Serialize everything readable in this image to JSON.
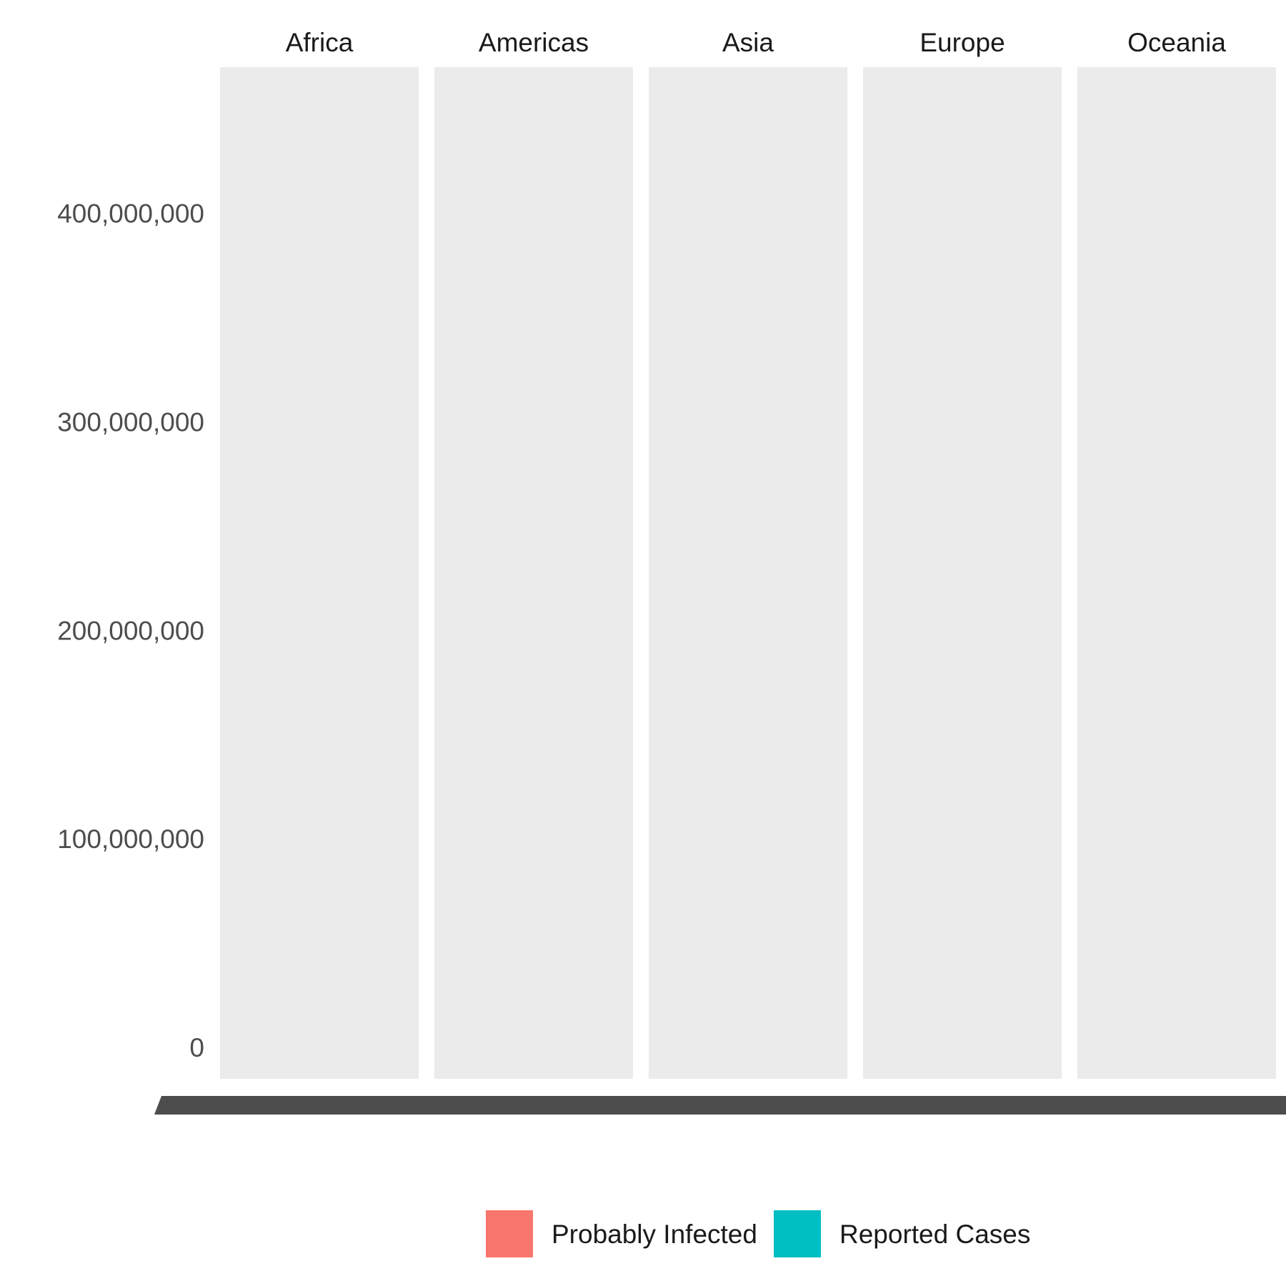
{
  "chart_data": {
    "type": "bar",
    "facet_by": "continent",
    "facets": [
      "Africa",
      "Americas",
      "Asia",
      "Europe",
      "Oceania"
    ],
    "y_ticks": [
      {
        "value": 0,
        "label": "0"
      },
      {
        "value": 100000000,
        "label": "100,000,000"
      },
      {
        "value": 200000000,
        "label": "200,000,000"
      },
      {
        "value": 300000000,
        "label": "300,000,000"
      },
      {
        "value": 400000000,
        "label": "400,000,000"
      }
    ],
    "ylim": [
      -15000000,
      470000000
    ],
    "x_tick_labels_overlapping": true,
    "series": [
      {
        "name": "Probably Infected",
        "color": "#F8766D",
        "values": []
      },
      {
        "name": "Reported Cases",
        "color": "#00BFC4",
        "values": []
      }
    ],
    "legend_position": "bottom",
    "panel_background": "#EBEBEB",
    "grid": false
  }
}
